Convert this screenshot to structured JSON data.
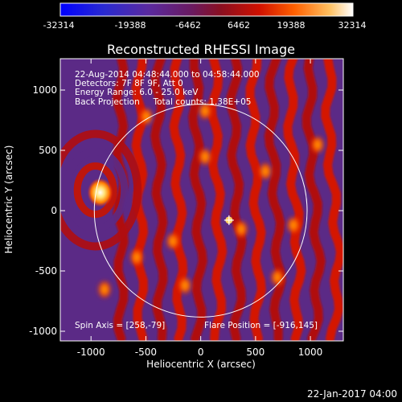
{
  "colorbar": {
    "ticks": [
      "-32314",
      "-19388",
      "-6462",
      "6462",
      "19388",
      "32314"
    ],
    "colors": [
      "#0000ff",
      "#3a2cc6",
      "#6b2a8c",
      "#7a1f4a",
      "#c00000",
      "#ff3000",
      "#ff8c00",
      "#ffd070",
      "#ffffff"
    ]
  },
  "plot": {
    "title": "Reconstructed RHESSI Image",
    "info_lines": [
      "22-Aug-2014 04:48:44.000 to 04:58:44.000",
      "Detectors: 7F 8F 9F, Att 0",
      "Energy Range: 6.0 - 25.0 keV",
      "Back Projection     Total counts: 1.38E+05"
    ],
    "spin_axis": "Spin Axis = [258,-79]",
    "flare_position": "Flare Position = [-916,145]",
    "xlabel": "Heliocentric X (arcsec)",
    "ylabel": "Heliocentric Y (arcsec)",
    "xticks": [
      "-1000",
      "-500",
      "0",
      "500",
      "1000"
    ],
    "yticks": [
      "1000",
      "500",
      "0",
      "-500",
      "-1000"
    ],
    "xtick_values": [
      -1000,
      -500,
      0,
      500,
      1000
    ],
    "ytick_values": [
      1000,
      500,
      0,
      -500,
      -1000
    ],
    "xlim": [
      -1280,
      1300
    ],
    "ylim": [
      -1080,
      1260
    ],
    "solar_disk_center": [
      0,
      0
    ],
    "solar_disk_radius_arcsec": 970,
    "bright_source_arcsec": [
      -916,
      170
    ],
    "marker_arcsec": [
      258,
      -79
    ]
  },
  "footer": {
    "date": "22-Jan-2017 04:00"
  }
}
